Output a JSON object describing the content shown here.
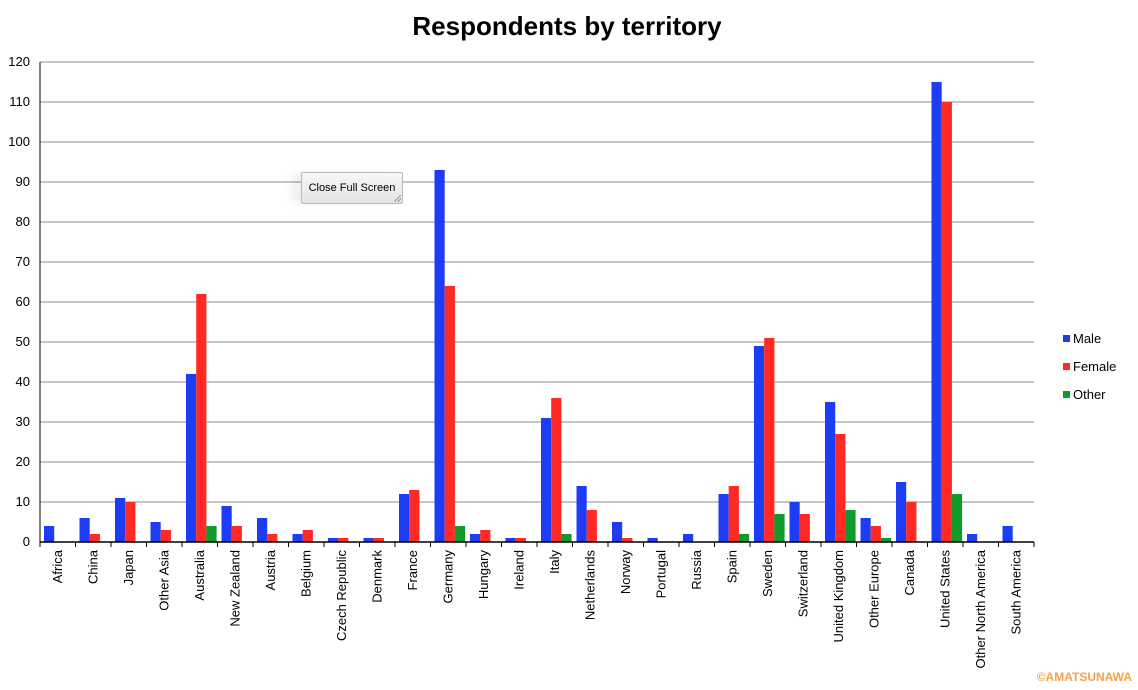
{
  "button": {
    "close_full_screen": "Close Full Screen"
  },
  "watermark": "©AMATSUNAWA",
  "colors": {
    "male": "#1f3cf5",
    "female": "#ff2a24",
    "other": "#109a2c",
    "grid": "#8c8c8c",
    "axis": "#000000"
  },
  "chart_data": {
    "type": "bar",
    "title": "Respondents by territory",
    "xlabel": "",
    "ylabel": "",
    "ylim": [
      0,
      120
    ],
    "yticks": [
      0,
      10,
      20,
      30,
      40,
      50,
      60,
      70,
      80,
      90,
      100,
      110,
      120
    ],
    "grid": true,
    "legend_position": "right",
    "categories": [
      "Africa",
      "China",
      "Japan",
      "Other Asia",
      "Australia",
      "New Zealand",
      "Austria",
      "Belgium",
      "Czech Republic",
      "Denmark",
      "France",
      "Germany",
      "Hungary",
      "Ireland",
      "Italy",
      "Netherlands",
      "Norway",
      "Portugal",
      "Russia",
      "Spain",
      "Sweden",
      "Switzerland",
      "United Kingdom",
      "Other Europe",
      "Canada",
      "United States",
      "Other North America",
      "South America"
    ],
    "series": [
      {
        "name": "Male",
        "values": [
          4,
          6,
          11,
          5,
          42,
          9,
          6,
          2,
          1,
          1,
          12,
          93,
          2,
          1,
          31,
          14,
          5,
          1,
          2,
          12,
          49,
          10,
          35,
          6,
          15,
          115,
          2,
          4
        ]
      },
      {
        "name": "Female",
        "values": [
          0,
          2,
          10,
          3,
          62,
          4,
          2,
          3,
          1,
          1,
          13,
          64,
          3,
          1,
          36,
          8,
          1,
          0,
          0,
          14,
          51,
          7,
          27,
          4,
          10,
          110,
          0,
          0
        ]
      },
      {
        "name": "Other",
        "values": [
          0,
          0,
          0,
          0,
          4,
          0,
          0,
          0,
          0,
          0,
          0,
          4,
          0,
          0,
          2,
          0,
          0,
          0,
          0,
          2,
          7,
          0,
          8,
          1,
          0,
          12,
          0,
          0
        ]
      }
    ]
  }
}
